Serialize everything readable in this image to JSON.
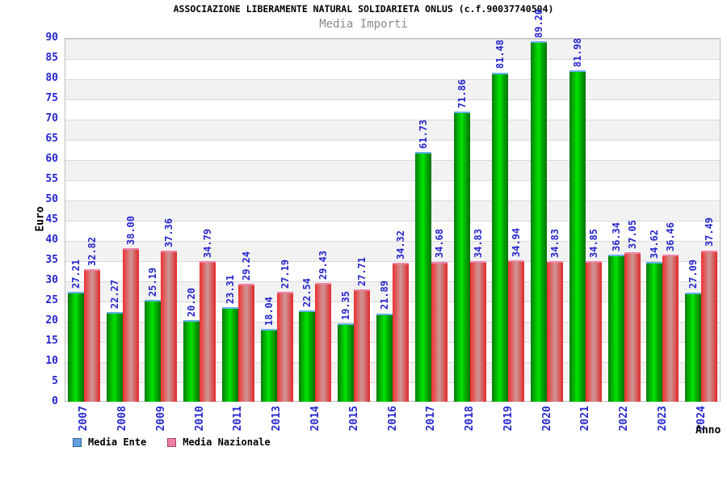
{
  "header": {
    "title": "ASSOCIAZIONE LIBERAMENTE NATURAL SOLIDARIETA ONLUS (c.f.90037740504)",
    "subtitle": "Media Importi"
  },
  "y_axis": {
    "label": "Euro",
    "ticks": [
      0,
      5,
      10,
      15,
      20,
      25,
      30,
      35,
      40,
      45,
      50,
      55,
      60,
      65,
      70,
      75,
      80,
      85,
      90
    ]
  },
  "x_axis": {
    "label": "Anno"
  },
  "legend": [
    {
      "label": "Media Ente",
      "swatch_color": "#62a2dc"
    },
    {
      "label": "Media Nazionale",
      "swatch_color": "#ee7fa5"
    }
  ],
  "chart_data": {
    "type": "bar",
    "title": "ASSOCIAZIONE LIBERAMENTE NATURAL SOLIDARIETA ONLUS (c.f.90037740504)",
    "subtitle": "Media Importi",
    "xlabel": "Anno",
    "ylabel": "Euro",
    "ylim": [
      0,
      90
    ],
    "grid": true,
    "legend_position": "bottom",
    "categories": [
      "2007",
      "2008",
      "2009",
      "2010",
      "2011",
      "2013",
      "2014",
      "2015",
      "2016",
      "2017",
      "2018",
      "2019",
      "2020",
      "2021",
      "2022",
      "2023",
      "2024"
    ],
    "series": [
      {
        "name": "Media Ente",
        "values": [
          27.21,
          22.27,
          25.19,
          20.2,
          23.31,
          18.04,
          22.54,
          19.35,
          21.89,
          61.73,
          71.86,
          81.48,
          89.2,
          81.98,
          36.34,
          34.62,
          27.09
        ]
      },
      {
        "name": "Media Nazionale",
        "values": [
          32.82,
          38.0,
          37.36,
          34.79,
          29.24,
          27.19,
          29.43,
          27.71,
          34.32,
          34.68,
          34.83,
          34.94,
          34.83,
          34.85,
          37.05,
          36.46,
          37.49
        ]
      }
    ]
  },
  "colors": {
    "bar_ente_main": "#00c800",
    "bar_ente_edge": "#0b7a0b",
    "bar_ente_cap": "#64b0e8",
    "bar_naz_main": "#d09393",
    "bar_naz_edge": "#ee3030",
    "bar_naz_cap": "#ef86ab",
    "tick_text": "#2626cd",
    "band_gray": "#f2f2f2",
    "gridline": "#d9d9d9",
    "frame_border": "#bdbdbd",
    "subtitle_text": "#8a8a8a"
  }
}
